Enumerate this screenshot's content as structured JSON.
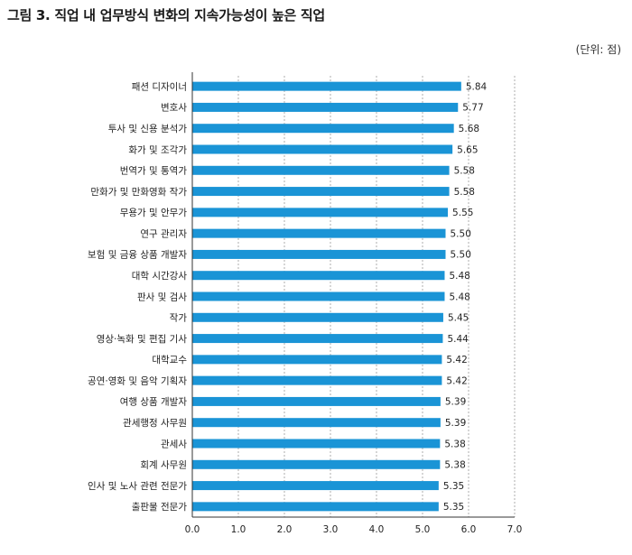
{
  "title": "그림 3. 직업 내 업무방식 변화의 지속가능성이 높은 직업",
  "unit": "(단위: 점)",
  "chart_data": {
    "type": "bar",
    "orientation": "horizontal",
    "categories": [
      "패션 디자이너",
      "변호사",
      "투사 및 신용 분석가",
      "화가 및 조각가",
      "번역가 및 통역가",
      "만화가 및 만화영화 작가",
      "무용가 및 안무가",
      "연구 관리자",
      "보험 및 금융 상품 개발자",
      "대학 시간강사",
      "판사 및 검사",
      "작가",
      "영상·녹화 및 편집 기사",
      "대학교수",
      "공연·영화 및 음악 기획자",
      "여행 상품 개발자",
      "관세행정 사무원",
      "관세사",
      "회계 사무원",
      "인사 및 노사 관련 전문가",
      "출판물 전문가"
    ],
    "values": [
      5.84,
      5.77,
      5.68,
      5.65,
      5.58,
      5.58,
      5.55,
      5.5,
      5.5,
      5.48,
      5.48,
      5.45,
      5.44,
      5.42,
      5.42,
      5.39,
      5.39,
      5.38,
      5.38,
      5.35,
      5.35
    ],
    "value_labels": [
      "5.84",
      "5.77",
      "5.68",
      "5.65",
      "5.58",
      "5.58",
      "5.55",
      "5.50",
      "5.50",
      "5.48",
      "5.48",
      "5.45",
      "5.44",
      "5.42",
      "5.42",
      "5.39",
      "5.39",
      "5.38",
      "5.38",
      "5.35",
      "5.35"
    ],
    "xlim": [
      0,
      7
    ],
    "xticks": [
      "0.0",
      "1.0",
      "2.0",
      "3.0",
      "4.0",
      "5.0",
      "6.0",
      "7.0"
    ],
    "grid": "vertical dashed",
    "bar_color": "#1a94d6"
  }
}
